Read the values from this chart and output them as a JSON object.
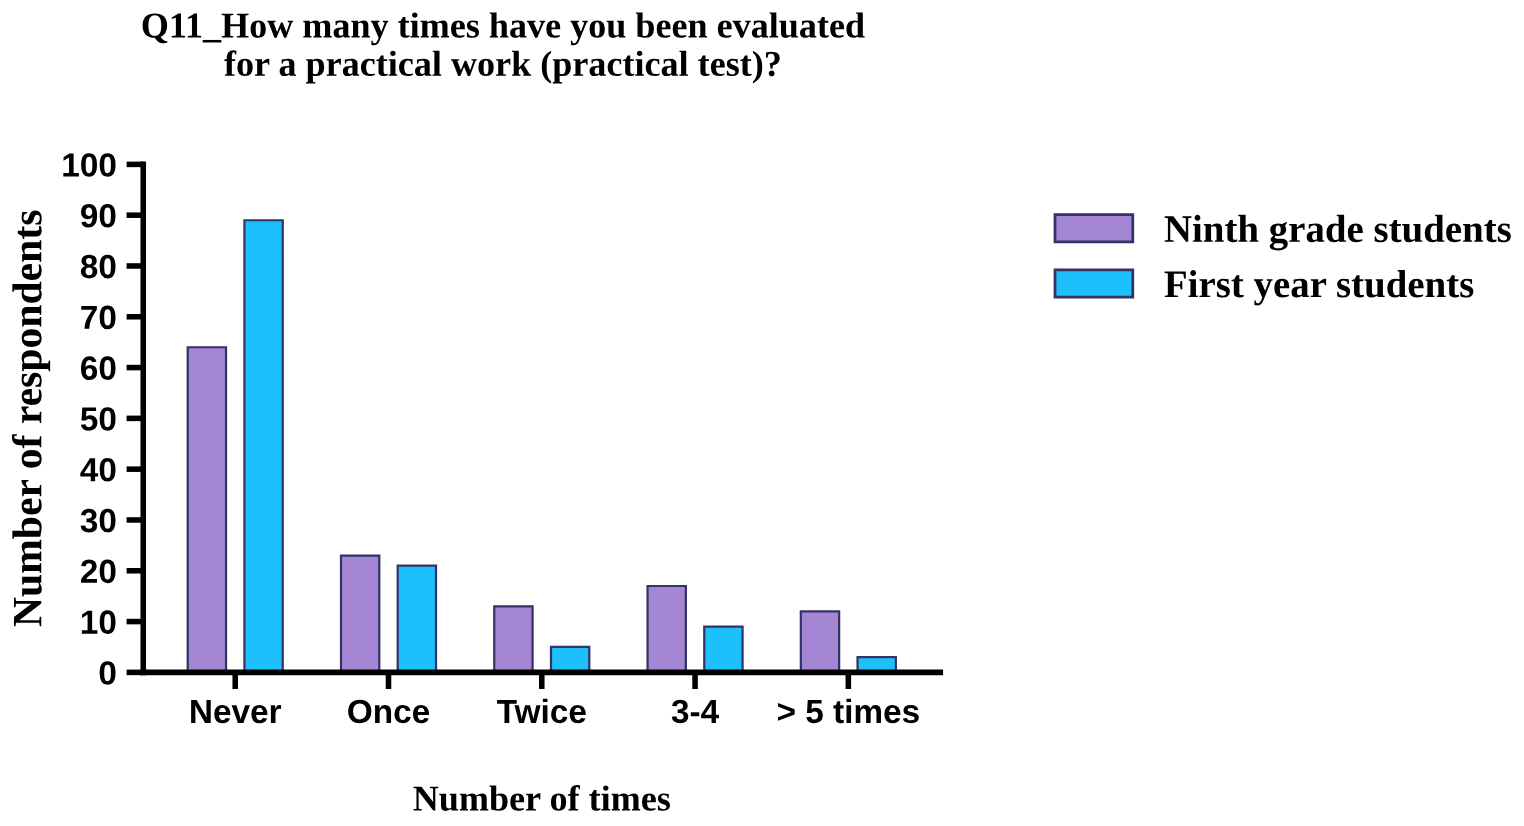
{
  "chart_data": {
    "type": "bar",
    "title": "Q11_How many times have you been evaluated\nfor a practical work (practical test)?",
    "xlabel": "Number of times",
    "ylabel": "Number of respondents",
    "categories": [
      "Never",
      "Once",
      "Twice",
      "3-4",
      "> 5 times"
    ],
    "series": [
      {
        "name": "Ninth grade students",
        "color": "#a586d4",
        "values": [
          64,
          23,
          13,
          17,
          12
        ]
      },
      {
        "name": "First year students",
        "color": "#1ec0fc",
        "values": [
          89,
          21,
          5,
          9,
          3
        ]
      }
    ],
    "ylim": [
      0,
      100
    ],
    "yticks": [
      0,
      10,
      20,
      30,
      40,
      50,
      60,
      70,
      80,
      90,
      100
    ],
    "grid": false,
    "legend": "right"
  }
}
